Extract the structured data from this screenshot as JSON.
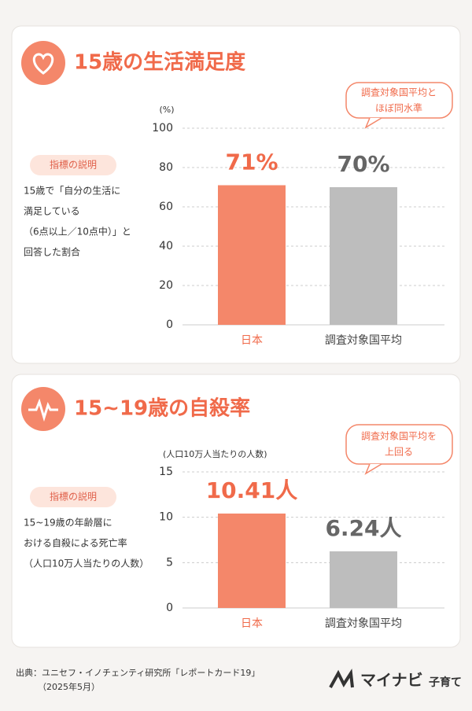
{
  "chart_data": [
    {
      "type": "bar",
      "title": "15歳の生活満足度",
      "y_label": "(%)",
      "categories": [
        "日本",
        "調査対象国平均"
      ],
      "values": [
        71,
        70
      ],
      "value_labels": [
        "71%",
        "70%"
      ],
      "colors": [
        "#f4876a",
        "#bdbdbd"
      ],
      "ylim": [
        0,
        100
      ],
      "yticks": [
        0,
        20,
        40,
        60,
        80,
        100
      ],
      "grid": true,
      "callout": [
        "調査対象国平均と",
        "ほぼ同水準"
      ],
      "indicator_label": "指標の説明",
      "indicator_text": [
        "15歳で「自分の生活に",
        "満足している",
        "（6点以上／10点中）」と",
        "回答した割合"
      ]
    },
    {
      "type": "bar",
      "title": "15~19歳の自殺率",
      "y_label": "(人口10万人当たりの人数)",
      "categories": [
        "日本",
        "調査対象国平均"
      ],
      "values": [
        10.41,
        6.24
      ],
      "value_labels": [
        "10.41人",
        "6.24人"
      ],
      "colors": [
        "#f4876a",
        "#bdbdbd"
      ],
      "ylim": [
        0,
        15
      ],
      "yticks": [
        0,
        5,
        10,
        15
      ],
      "grid": true,
      "callout": [
        "調査対象国平均を",
        "上回る"
      ],
      "indicator_label": "指標の説明",
      "indicator_text": [
        "15~19歳の年齢層に",
        "おける自殺による死亡率",
        "（人口10万人当たりの人数）"
      ]
    }
  ],
  "footer": {
    "source": [
      "出典：ユニセフ・イノチェンティ研究所「レポートカード19」",
      "（2025年5月）"
    ],
    "logo": "マイナビ",
    "logo_sub": "子育て"
  }
}
